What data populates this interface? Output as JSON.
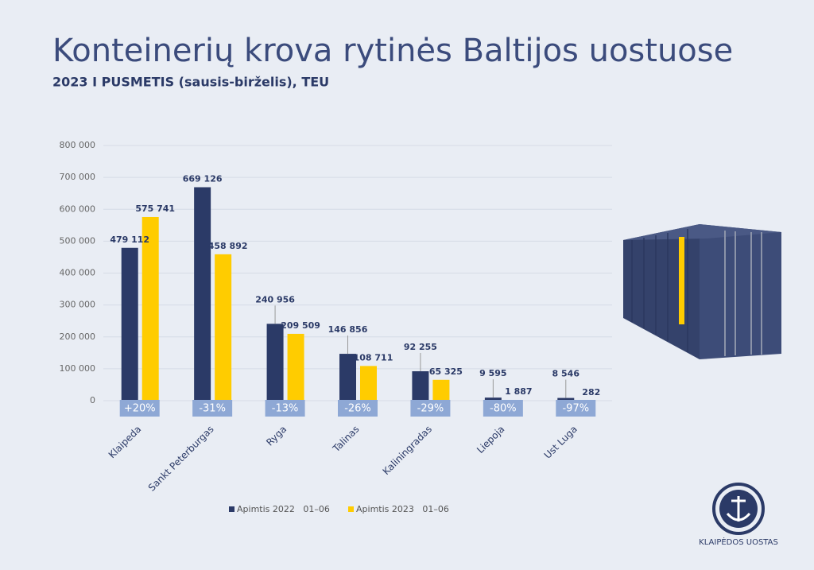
{
  "chart_data": {
    "type": "bar",
    "title": "Konteinerių krova rytinės Baltijos uostuose",
    "subtitle": "2023 I PUSMETIS (sausis-birželis), TEU",
    "categories": [
      "Klaipeda",
      "Sankt Peterburgas",
      "Ryga",
      "Talinas",
      "Kaliningradas",
      "Liepoja",
      "Ust Luga"
    ],
    "series": [
      {
        "name": "Apimtis 2022   01–06",
        "color": "#2b3a67",
        "values": [
          479112,
          669126,
          240956,
          146856,
          92255,
          9595,
          8546
        ],
        "value_labels": [
          "479 112",
          "669 126",
          "240 956",
          "146 856",
          "92 255",
          "9 595",
          "8 546"
        ]
      },
      {
        "name": "Apimtis 2023   01–06",
        "color": "#ffcc00",
        "values": [
          575741,
          458892,
          209509,
          108711,
          65325,
          1887,
          282
        ],
        "value_labels": [
          "575 741",
          "458 892",
          "209 509",
          "108 711",
          "65 325",
          "1 887",
          "282"
        ]
      }
    ],
    "changes": [
      20,
      -31,
      -13,
      -26,
      -29,
      -80,
      -97
    ],
    "change_labels": [
      "+20%",
      "-31%",
      "-13%",
      "-26%",
      "-29%",
      "-80%",
      "-97%"
    ],
    "change_color": "#8ea8d5",
    "ylim": [
      0,
      800000
    ],
    "yticks": [
      0,
      {
        "value": 100000,
        "label": "100 000"
      },
      {
        "value": 200000,
        "label": "200 000"
      },
      {
        "value": 300000,
        "label": "300 000"
      },
      {
        "value": 400000,
        "label": "400 000"
      },
      {
        "value": 500000,
        "label": "500 000"
      },
      {
        "value": 600000,
        "label": "600 000"
      },
      {
        "value": 700000,
        "label": "700 000"
      },
      {
        "value": 800000,
        "label": "800 000"
      }
    ],
    "grid": true
  },
  "logo": {
    "text": "KLAIPĖDOS UOSTAS"
  }
}
